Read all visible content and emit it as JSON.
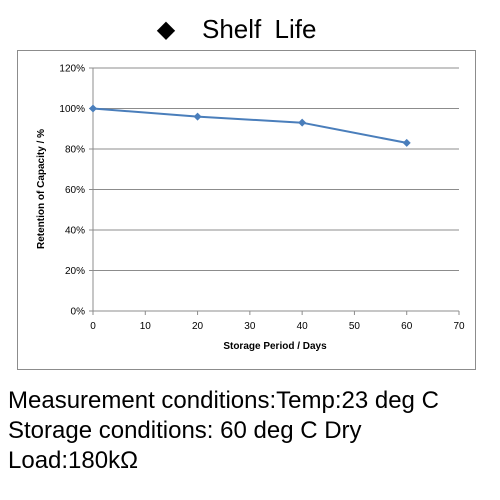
{
  "header": {
    "bullet": "◆",
    "title": "Shelf  Life"
  },
  "chart_data": {
    "type": "line",
    "title": "Shelf  Life",
    "xlabel": "Storage Period / Days",
    "ylabel": "Retention of Capacity / %",
    "x_ticks": [
      0,
      10,
      20,
      30,
      40,
      50,
      60,
      70
    ],
    "y_ticks": [
      "0%",
      "20%",
      "40%",
      "60%",
      "80%",
      "100%",
      "120%"
    ],
    "y_tick_values": [
      0,
      20,
      40,
      60,
      80,
      100,
      120
    ],
    "xlim": [
      0,
      70
    ],
    "ylim": [
      0,
      120
    ],
    "grid": "horizontal",
    "legend": "none",
    "line_color": "#4a7ebb",
    "marker": "diamond",
    "series": [
      {
        "x": [
          0,
          20,
          40,
          60
        ],
        "values": [
          100,
          96,
          93,
          83
        ]
      }
    ]
  },
  "conditions": {
    "measurement": "Measurement conditions:Temp:23 deg C",
    "storage": "Storage conditions: 60 deg C Dry",
    "load": "Load:180kΩ"
  }
}
